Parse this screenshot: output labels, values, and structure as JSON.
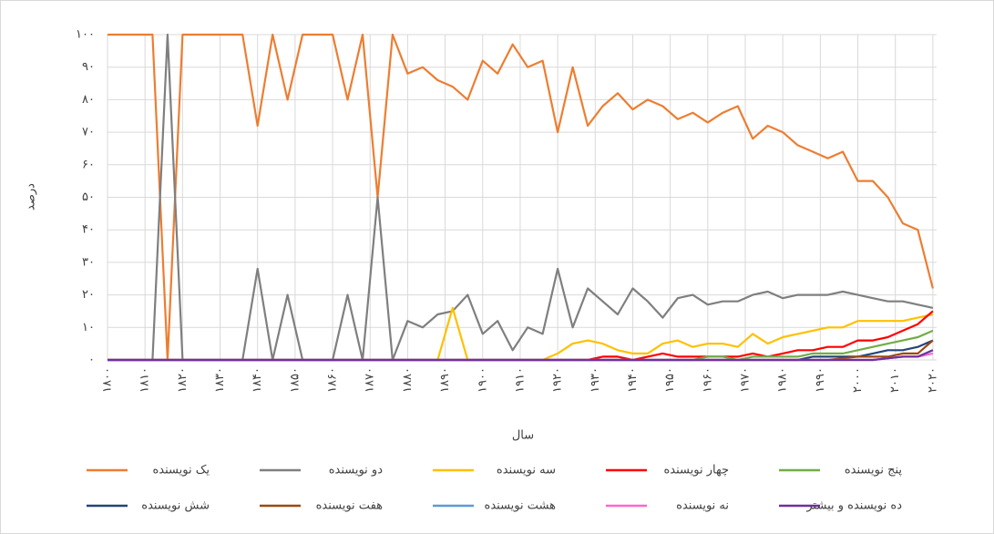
{
  "chart_data": {
    "type": "line",
    "y_label": "درصد",
    "x_label": "سال",
    "xlim": [
      1800,
      2021
    ],
    "ylim": [
      0,
      100
    ],
    "xticks": [
      {
        "value": 1800,
        "label": "۱۸۰۰"
      },
      {
        "value": 1810,
        "label": "۱۸۱۰"
      },
      {
        "value": 1820,
        "label": "۱۸۲۰"
      },
      {
        "value": 1830,
        "label": "۱۸۳۰"
      },
      {
        "value": 1840,
        "label": "۱۸۴۰"
      },
      {
        "value": 1850,
        "label": "۱۸۵۰"
      },
      {
        "value": 1860,
        "label": "۱۸۶۰"
      },
      {
        "value": 1870,
        "label": "۱۸۷۰"
      },
      {
        "value": 1880,
        "label": "۱۸۸۰"
      },
      {
        "value": 1890,
        "label": "۱۸۹۰"
      },
      {
        "value": 1900,
        "label": "۱۹۰۰"
      },
      {
        "value": 1910,
        "label": "۱۹۱۰"
      },
      {
        "value": 1920,
        "label": "۱۹۲۰"
      },
      {
        "value": 1930,
        "label": "۱۹۳۰"
      },
      {
        "value": 1940,
        "label": "۱۹۴۰"
      },
      {
        "value": 1950,
        "label": "۱۹۵۰"
      },
      {
        "value": 1960,
        "label": "۱۹۶۰"
      },
      {
        "value": 1970,
        "label": "۱۹۷۰"
      },
      {
        "value": 1980,
        "label": "۱۹۸۰"
      },
      {
        "value": 1990,
        "label": "۱۹۹۰"
      },
      {
        "value": 2000,
        "label": "۲۰۰۰"
      },
      {
        "value": 2010,
        "label": "۲۰۱۰"
      },
      {
        "value": 2020,
        "label": "۲۰۲۰"
      }
    ],
    "yticks": [
      {
        "value": 0,
        "label": "۰"
      },
      {
        "value": 10,
        "label": "۱۰"
      },
      {
        "value": 20,
        "label": "۲۰"
      },
      {
        "value": 30,
        "label": "۳۰"
      },
      {
        "value": 40,
        "label": "۴۰"
      },
      {
        "value": 50,
        "label": "۵۰"
      },
      {
        "value": 60,
        "label": "۶۰"
      },
      {
        "value": 70,
        "label": "۷۰"
      },
      {
        "value": 80,
        "label": "۸۰"
      },
      {
        "value": 90,
        "label": "۹۰"
      },
      {
        "value": 100,
        "label": "۱۰۰"
      }
    ],
    "grid": true,
    "x": [
      1800,
      1804,
      1808,
      1812,
      1816,
      1820,
      1824,
      1828,
      1832,
      1836,
      1840,
      1844,
      1848,
      1852,
      1856,
      1860,
      1864,
      1868,
      1872,
      1876,
      1880,
      1884,
      1888,
      1892,
      1896,
      1900,
      1904,
      1908,
      1912,
      1916,
      1920,
      1924,
      1928,
      1932,
      1936,
      1940,
      1944,
      1948,
      1952,
      1956,
      1960,
      1964,
      1968,
      1972,
      1976,
      1980,
      1984,
      1988,
      1992,
      1996,
      2000,
      2004,
      2008,
      2012,
      2016,
      2020
    ],
    "series": [
      {
        "name": "یک نویسنده",
        "color": "#ed7d31",
        "values": [
          100,
          100,
          100,
          100,
          0,
          100,
          100,
          100,
          100,
          100,
          72,
          100,
          80,
          100,
          100,
          100,
          80,
          100,
          50,
          100,
          88,
          90,
          86,
          84,
          80,
          92,
          88,
          97,
          90,
          92,
          70,
          90,
          72,
          78,
          82,
          77,
          80,
          78,
          74,
          76,
          73,
          76,
          78,
          68,
          72,
          70,
          66,
          64,
          62,
          64,
          55,
          55,
          50,
          42,
          40,
          22
        ]
      },
      {
        "name": "دو نویسنده",
        "color": "#7f7f7f",
        "values": [
          0,
          0,
          0,
          0,
          100,
          0,
          0,
          0,
          0,
          0,
          28,
          0,
          20,
          0,
          0,
          0,
          20,
          0,
          50,
          0,
          12,
          10,
          14,
          15,
          20,
          8,
          12,
          3,
          10,
          8,
          28,
          10,
          22,
          18,
          14,
          22,
          18,
          13,
          19,
          20,
          17,
          18,
          18,
          20,
          21,
          19,
          20,
          20,
          20,
          21,
          20,
          19,
          18,
          18,
          17,
          16
        ]
      },
      {
        "name": "سه نویسنده",
        "color": "#ffc000",
        "values": [
          0,
          0,
          0,
          0,
          0,
          0,
          0,
          0,
          0,
          0,
          0,
          0,
          0,
          0,
          0,
          0,
          0,
          0,
          0,
          0,
          0,
          0,
          0,
          16,
          0,
          0,
          0,
          0,
          0,
          0,
          2,
          5,
          6,
          5,
          3,
          2,
          2,
          5,
          6,
          4,
          5,
          5,
          4,
          8,
          5,
          7,
          8,
          9,
          10,
          10,
          12,
          12,
          12,
          12,
          13,
          14
        ]
      },
      {
        "name": "چهار نویسنده",
        "color": "#ff0000",
        "values": [
          0,
          0,
          0,
          0,
          0,
          0,
          0,
          0,
          0,
          0,
          0,
          0,
          0,
          0,
          0,
          0,
          0,
          0,
          0,
          0,
          0,
          0,
          0,
          0,
          0,
          0,
          0,
          0,
          0,
          0,
          0,
          0,
          0,
          1,
          1,
          0,
          1,
          2,
          1,
          1,
          1,
          1,
          1,
          2,
          1,
          2,
          3,
          3,
          4,
          4,
          6,
          6,
          7,
          9,
          11,
          15
        ]
      },
      {
        "name": "پنج نویسنده",
        "color": "#70ad47",
        "values": [
          0,
          0,
          0,
          0,
          0,
          0,
          0,
          0,
          0,
          0,
          0,
          0,
          0,
          0,
          0,
          0,
          0,
          0,
          0,
          0,
          0,
          0,
          0,
          0,
          0,
          0,
          0,
          0,
          0,
          0,
          0,
          0,
          0,
          0,
          0,
          0,
          0,
          0,
          0,
          0,
          1,
          1,
          0,
          1,
          1,
          1,
          1,
          2,
          2,
          2,
          3,
          4,
          5,
          6,
          7,
          9
        ]
      },
      {
        "name": "شش نویسنده",
        "color": "#264478",
        "values": [
          0,
          0,
          0,
          0,
          0,
          0,
          0,
          0,
          0,
          0,
          0,
          0,
          0,
          0,
          0,
          0,
          0,
          0,
          0,
          0,
          0,
          0,
          0,
          0,
          0,
          0,
          0,
          0,
          0,
          0,
          0,
          0,
          0,
          0,
          0,
          0,
          0,
          0,
          0,
          0,
          0,
          0,
          0,
          0,
          0,
          0,
          0,
          1,
          1,
          1,
          1,
          2,
          3,
          3,
          4,
          6
        ]
      },
      {
        "name": "هفت نویسنده",
        "color": "#9e480e",
        "values": [
          0,
          0,
          0,
          0,
          0,
          0,
          0,
          0,
          0,
          0,
          0,
          0,
          0,
          0,
          0,
          0,
          0,
          0,
          0,
          0,
          0,
          0,
          0,
          0,
          0,
          0,
          0,
          0,
          0,
          0,
          0,
          0,
          0,
          0,
          0,
          0,
          0,
          0,
          0,
          0,
          0,
          0,
          0,
          0,
          0,
          0,
          0,
          0,
          0,
          0.5,
          1,
          1,
          1,
          2,
          2,
          6
        ]
      },
      {
        "name": "هشت نویسنده",
        "color": "#5b9bd5",
        "values": [
          0,
          0,
          0,
          0,
          0,
          0,
          0,
          0,
          0,
          0,
          0,
          0,
          0,
          0,
          0,
          0,
          0,
          0,
          0,
          0,
          0,
          0,
          0,
          0,
          0,
          0,
          0,
          0,
          0,
          0,
          0,
          0,
          0,
          0,
          0,
          0,
          0,
          0,
          0,
          0,
          0,
          0,
          0,
          0,
          0,
          0,
          0,
          0,
          0,
          0,
          0,
          0,
          0.5,
          1,
          1,
          3
        ]
      },
      {
        "name": "نه نویسنده",
        "color": "#ff66cc",
        "values": [
          0,
          0,
          0,
          0,
          0,
          0,
          0,
          0,
          0,
          0,
          0,
          0,
          0,
          0,
          0,
          0,
          0,
          0,
          0,
          0,
          0,
          0,
          0,
          0,
          0,
          0,
          0,
          0,
          0,
          0,
          0,
          0,
          0,
          0,
          0,
          0,
          0,
          0,
          0,
          0,
          0,
          0,
          0,
          0,
          0,
          0,
          0,
          0,
          0,
          0,
          0,
          0,
          0.5,
          1,
          1,
          2
        ]
      },
      {
        "name": "ده نویسنده و بیشتر",
        "color": "#7030a0",
        "values": [
          0,
          0,
          0,
          0,
          0,
          0,
          0,
          0,
          0,
          0,
          0,
          0,
          0,
          0,
          0,
          0,
          0,
          0,
          0,
          0,
          0,
          0,
          0,
          0,
          0,
          0,
          0,
          0,
          0,
          0,
          0,
          0,
          0,
          0,
          0,
          0,
          0,
          0,
          0,
          0,
          0,
          0,
          0,
          0,
          0,
          0,
          0,
          0,
          0,
          0,
          0,
          0,
          0.5,
          1,
          1,
          3
        ]
      }
    ]
  }
}
